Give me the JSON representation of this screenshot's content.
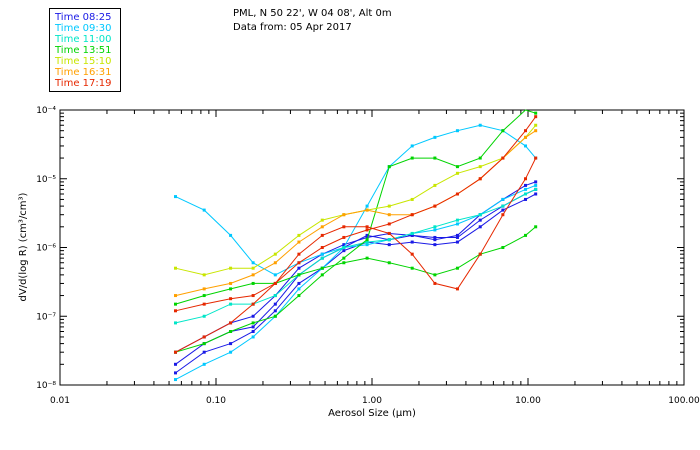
{
  "header": {
    "location": "PML, N 50 22', W 04 08', Alt 0m",
    "date": "Data from: 05 Apr 2017"
  },
  "legend": [
    {
      "label": "Time 08:25",
      "color": "#1a1ae6"
    },
    {
      "label": "Time 09:30",
      "color": "#00c8ff"
    },
    {
      "label": "Time 11:00",
      "color": "#00e6c8"
    },
    {
      "label": "Time 13:51",
      "color": "#00d400"
    },
    {
      "label": "Time 15:10",
      "color": "#c8e600"
    },
    {
      "label": "Time 16:31",
      "color": "#ffa000"
    },
    {
      "label": "Time 17:19",
      "color": "#e62800"
    }
  ],
  "chart_data": {
    "type": "line",
    "title": "PML, N 50 22', W 04 08', Alt 0m",
    "xlabel": "Aerosol Size (µm)",
    "ylabel": "dV/d(log R) (cm³/cm³)",
    "xscale": "log",
    "yscale": "log",
    "xlim": [
      0.01,
      100
    ],
    "ylim": [
      1e-08,
      0.0001
    ],
    "x_tick_labels": [
      "0.01",
      "0.10",
      "1.00",
      "10.00",
      "100.00"
    ],
    "y_tick_labels": [
      "10⁻⁸",
      "10⁻⁷",
      "10⁻⁶",
      "10⁻⁵",
      "10⁻⁴"
    ],
    "x": [
      0.055,
      0.084,
      0.124,
      0.173,
      0.24,
      0.34,
      0.48,
      0.66,
      0.93,
      1.29,
      1.81,
      2.53,
      3.53,
      4.94,
      6.9,
      9.64,
      11.2
    ],
    "series": [
      {
        "name": "Time 08:25",
        "color": "#1a1ae6",
        "values": [
          2e-08,
          4e-08,
          6e-08,
          7e-08,
          1.5e-07,
          4e-07,
          7e-07,
          1e-06,
          1.5e-06,
          1.3e-06,
          1.5e-06,
          1.4e-06,
          1.4e-06,
          2.5e-06,
          4e-06,
          6e-06,
          7e-06
        ]
      },
      {
        "name": "Time 08:25",
        "color": "#1a1ae6",
        "values": [
          3e-08,
          5e-08,
          8e-08,
          1e-07,
          2e-07,
          5e-07,
          8e-07,
          1.1e-06,
          1.4e-06,
          1.6e-06,
          1.5e-06,
          1.3e-06,
          1.5e-06,
          3e-06,
          5e-06,
          8e-06,
          9e-06
        ]
      },
      {
        "name": "Time 08:25",
        "color": "#1a1ae6",
        "values": [
          1.5e-08,
          3e-08,
          4e-08,
          6e-08,
          1.2e-07,
          3e-07,
          5e-07,
          9e-07,
          1.2e-06,
          1.1e-06,
          1.2e-06,
          1.1e-06,
          1.2e-06,
          2e-06,
          3.5e-06,
          5e-06,
          6e-06
        ]
      },
      {
        "name": "Time 09:30",
        "color": "#00c8ff",
        "values": [
          5.5e-06,
          3.5e-06,
          1.5e-06,
          6e-07,
          4e-07,
          6e-07,
          8e-07,
          1e-06,
          1.1e-06,
          1.3e-06,
          1.6e-06,
          1.8e-06,
          2.2e-06,
          3e-06,
          5e-06,
          7e-06,
          8e-06
        ]
      },
      {
        "name": "Time 09:30",
        "color": "#00c8ff",
        "values": [
          1.2e-08,
          2e-08,
          3e-08,
          5e-08,
          1e-07,
          2.5e-07,
          5e-07,
          1e-06,
          4e-06,
          1.5e-05,
          3e-05,
          4e-05,
          5e-05,
          6e-05,
          5e-05,
          3e-05,
          2e-05
        ]
      },
      {
        "name": "Time 11:00",
        "color": "#00e6c8",
        "values": [
          8e-08,
          1e-07,
          1.5e-07,
          1.5e-07,
          2e-07,
          4e-07,
          7e-07,
          1e-06,
          1.2e-06,
          1.3e-06,
          1.6e-06,
          2e-06,
          2.5e-06,
          3e-06,
          4e-06,
          6e-06,
          7e-06
        ]
      },
      {
        "name": "Time 13:51",
        "color": "#00d400",
        "values": [
          1.5e-07,
          2e-07,
          2.5e-07,
          3e-07,
          3e-07,
          4e-07,
          5e-07,
          6e-07,
          7e-07,
          6e-07,
          5e-07,
          4e-07,
          5e-07,
          8e-07,
          1e-06,
          1.5e-06,
          2e-06
        ]
      },
      {
        "name": "Time 13:51",
        "color": "#00d400",
        "values": [
          3e-08,
          4e-08,
          6e-08,
          8e-08,
          1e-07,
          2e-07,
          4e-07,
          7e-07,
          1.3e-06,
          1.5e-05,
          2e-05,
          2e-05,
          1.5e-05,
          2e-05,
          5e-05,
          0.0001,
          9e-05
        ]
      },
      {
        "name": "Time 15:10",
        "color": "#c8e600",
        "values": [
          5e-07,
          4e-07,
          5e-07,
          5e-07,
          8e-07,
          1.5e-06,
          2.5e-06,
          3e-06,
          3.5e-06,
          4e-06,
          5e-06,
          8e-06,
          1.2e-05,
          1.5e-05,
          2e-05,
          4e-05,
          6e-05
        ]
      },
      {
        "name": "Time 16:31",
        "color": "#ffa000",
        "values": [
          2e-07,
          2.5e-07,
          3e-07,
          4e-07,
          6e-07,
          1.2e-06,
          2e-06,
          3e-06,
          3.5e-06,
          3e-06,
          3e-06,
          4e-06,
          6e-06,
          1e-05,
          2e-05,
          4e-05,
          5e-05
        ]
      },
      {
        "name": "Time 17:19",
        "color": "#e62800",
        "values": [
          3e-08,
          5e-08,
          8e-08,
          1.5e-07,
          3e-07,
          8e-07,
          1.5e-06,
          2e-06,
          2e-06,
          1.6e-06,
          8e-07,
          3e-07,
          2.5e-07,
          8e-07,
          3e-06,
          1e-05,
          2e-05
        ]
      },
      {
        "name": "Time 17:19",
        "color": "#e62800",
        "values": [
          1.2e-07,
          1.5e-07,
          1.8e-07,
          2e-07,
          3e-07,
          6e-07,
          1e-06,
          1.4e-06,
          1.8e-06,
          2.2e-06,
          3e-06,
          4e-06,
          6e-06,
          1e-05,
          2e-05,
          5e-05,
          8e-05
        ]
      }
    ]
  }
}
